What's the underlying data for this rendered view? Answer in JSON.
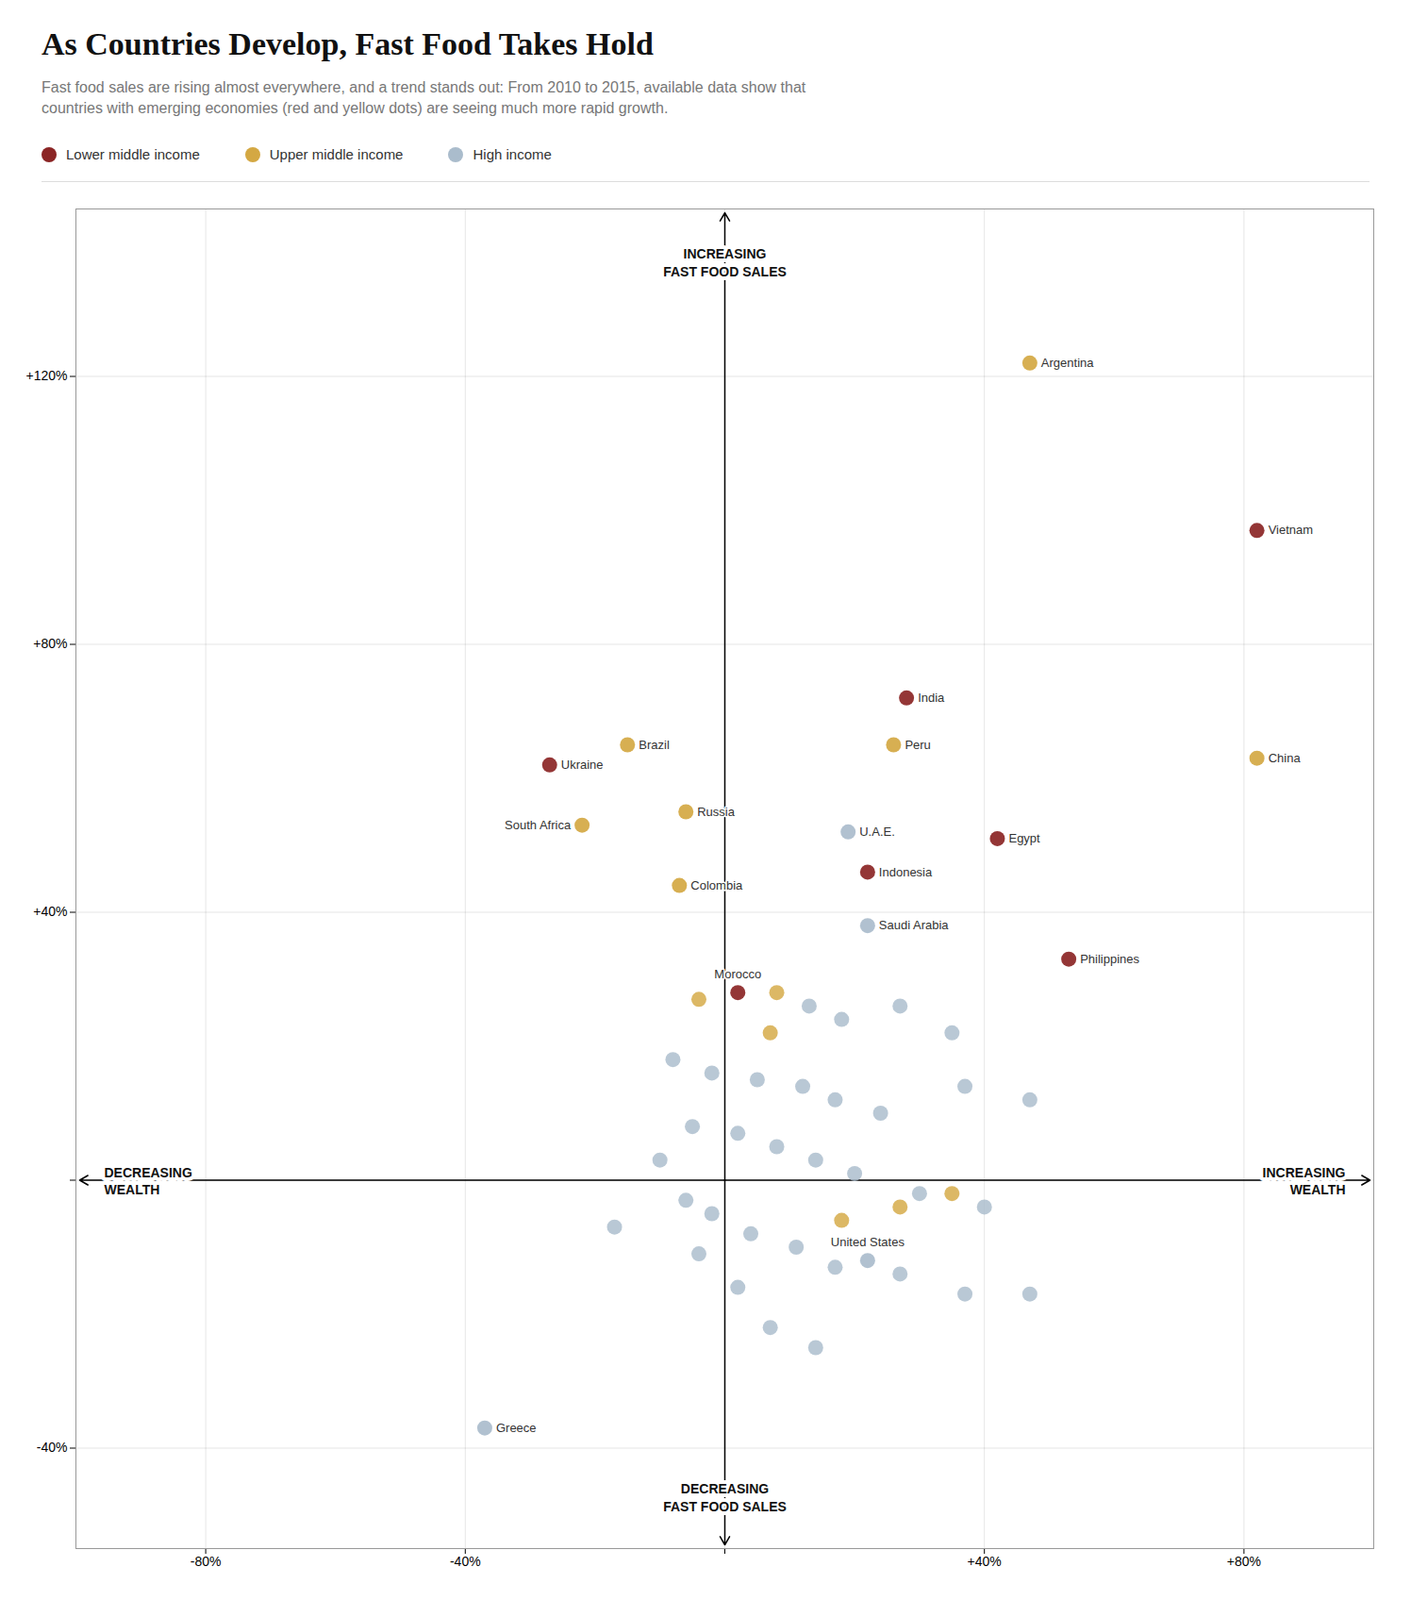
{
  "chart_data": {
    "type": "scatter",
    "title": "As Countries Develop, Fast Food Takes Hold",
    "subtitle": [
      "Fast food sales are rising almost everywhere, and a trend stands out: From 2010 to 2015, available data show that",
      "countries with emerging economies (red and yellow dots) are seeing much more rapid growth."
    ],
    "series": [
      {
        "name": "Lower middle income",
        "color": "#8B2525",
        "x": [
          82,
          28,
          -27,
          42,
          22,
          53,
          2
        ],
        "y": [
          97,
          72,
          62,
          51,
          46,
          33,
          28
        ],
        "labels": [
          "Vietnam",
          "India",
          "Ukraine",
          "Egypt",
          "Indonesia",
          "Philippines",
          "Morocco"
        ]
      },
      {
        "name": "Upper middle income",
        "color": "#D4A843",
        "x": [
          -4,
          8,
          7,
          18,
          27,
          35,
          47,
          26,
          -15,
          82,
          -6,
          -22,
          -7
        ],
        "y": [
          27,
          28,
          22,
          -6,
          -4,
          -2,
          122,
          65,
          65,
          63,
          55,
          53,
          44
        ],
        "labels": [
          null,
          null,
          null,
          null,
          null,
          null,
          "Argentina",
          "Peru",
          "Brazil",
          "China",
          "Russia",
          "South Africa",
          "Colombia"
        ]
      },
      {
        "name": "High income",
        "color": "#AABCCC",
        "x": [
          13,
          18,
          27,
          35,
          -8,
          -2,
          5,
          12,
          17,
          24,
          37,
          47,
          -5,
          2,
          8,
          14,
          20,
          30,
          40,
          -10,
          -6,
          -2,
          4,
          11,
          17,
          27,
          37,
          47,
          -4,
          2,
          -17,
          7,
          14,
          19,
          22,
          22,
          -37
        ],
        "y": [
          26,
          24,
          26,
          22,
          18,
          16,
          15,
          14,
          12,
          10,
          14,
          12,
          8,
          7,
          5,
          3,
          1,
          -2,
          -4,
          3,
          -3,
          -5,
          -8,
          -10,
          -13,
          -14,
          -17,
          -17,
          -11,
          -16,
          -7,
          -22,
          -25,
          52,
          38,
          -12,
          -37
        ],
        "labels": [
          null,
          null,
          null,
          null,
          null,
          null,
          null,
          null,
          null,
          null,
          null,
          null,
          null,
          null,
          null,
          null,
          null,
          null,
          null,
          null,
          null,
          null,
          null,
          null,
          null,
          null,
          null,
          null,
          null,
          null,
          null,
          null,
          null,
          "U.A.E.",
          "Saudi Arabia",
          "United States",
          "Greece"
        ]
      }
    ],
    "annotations": [
      {
        "text": "INCREASING\nFAST FOOD SALES",
        "position": "top"
      },
      {
        "text": "DECREASING\nFAST FOOD SALES",
        "position": "bottom"
      },
      {
        "text": "DECREASING\nWEALTH",
        "position": "left"
      },
      {
        "text": "INCREASING\nWEALTH",
        "position": "right"
      }
    ],
    "xlim": [
      -100,
      100
    ],
    "ylim": [
      -55,
      145
    ],
    "xticks": [
      {
        "value": -80,
        "label": "-80%"
      },
      {
        "value": -40,
        "label": "-40%"
      },
      {
        "value": 0,
        "label": null
      },
      {
        "value": 40,
        "label": "+40%"
      },
      {
        "value": 80,
        "label": "+80%"
      }
    ],
    "yticks": [
      {
        "value": -40,
        "label": "-40%"
      },
      {
        "value": 0,
        "label": null
      },
      {
        "value": 40,
        "label": "+40%"
      },
      {
        "value": 80,
        "label": "+80%"
      },
      {
        "value": 120,
        "label": "+120%"
      }
    ],
    "grid": true,
    "legend": "top"
  }
}
